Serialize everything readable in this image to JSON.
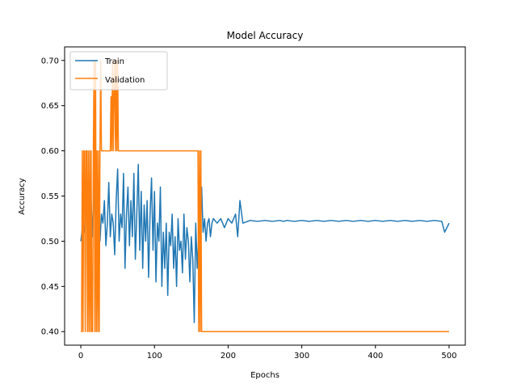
{
  "chart_data": {
    "type": "line",
    "title": "Model Accuracy",
    "xlabel": "Epochs",
    "ylabel": "Accuracy",
    "xlim": [
      -22,
      522
    ],
    "ylim": [
      0.385,
      0.715
    ],
    "xticks": [
      0,
      100,
      200,
      300,
      400,
      500
    ],
    "yticks": [
      0.4,
      0.45,
      0.5,
      0.55,
      0.6,
      0.65,
      0.7
    ],
    "ytick_labels": [
      "0.40",
      "0.45",
      "0.50",
      "0.55",
      "0.60",
      "0.65",
      "0.70"
    ],
    "grid": false,
    "legend_position": "top-left",
    "series": [
      {
        "name": "Train",
        "color": "#1f77b4",
        "x": [
          0,
          3,
          5,
          7,
          9,
          12,
          14,
          16,
          18,
          20,
          22,
          24,
          26,
          28,
          30,
          32,
          34,
          36,
          38,
          40,
          42,
          44,
          46,
          48,
          50,
          52,
          54,
          56,
          58,
          60,
          62,
          64,
          66,
          68,
          70,
          72,
          74,
          76,
          78,
          80,
          82,
          84,
          86,
          88,
          90,
          92,
          94,
          96,
          98,
          100,
          102,
          104,
          106,
          108,
          110,
          112,
          114,
          116,
          118,
          120,
          122,
          124,
          126,
          128,
          130,
          132,
          134,
          136,
          138,
          140,
          142,
          144,
          146,
          148,
          150,
          152,
          154,
          156,
          158,
          160,
          162,
          164,
          166,
          168,
          170,
          172,
          174,
          176,
          178,
          180,
          185,
          190,
          195,
          200,
          205,
          210,
          213,
          216,
          220,
          230,
          240,
          250,
          260,
          270,
          275,
          280,
          290,
          300,
          310,
          320,
          330,
          340,
          350,
          360,
          370,
          380,
          390,
          400,
          410,
          420,
          430,
          440,
          450,
          460,
          470,
          480,
          490,
          494,
          500
        ],
        "y": [
          0.5,
          0.52,
          0.51,
          0.555,
          0.5,
          0.52,
          0.545,
          0.505,
          0.56,
          0.5,
          0.525,
          0.54,
          0.5,
          0.53,
          0.52,
          0.545,
          0.495,
          0.52,
          0.565,
          0.505,
          0.53,
          0.52,
          0.485,
          0.545,
          0.58,
          0.5,
          0.53,
          0.515,
          0.575,
          0.47,
          0.53,
          0.56,
          0.495,
          0.545,
          0.505,
          0.575,
          0.48,
          0.53,
          0.585,
          0.49,
          0.555,
          0.47,
          0.54,
          0.5,
          0.545,
          0.46,
          0.53,
          0.57,
          0.49,
          0.555,
          0.455,
          0.52,
          0.5,
          0.56,
          0.45,
          0.51,
          0.47,
          0.52,
          0.44,
          0.51,
          0.495,
          0.53,
          0.47,
          0.505,
          0.45,
          0.525,
          0.49,
          0.5,
          0.465,
          0.53,
          0.48,
          0.515,
          0.5,
          0.455,
          0.505,
          0.48,
          0.41,
          0.52,
          0.47,
          0.505,
          0.49,
          0.56,
          0.51,
          0.525,
          0.5,
          0.52,
          0.525,
          0.505,
          0.52,
          0.525,
          0.52,
          0.525,
          0.515,
          0.525,
          0.52,
          0.53,
          0.505,
          0.545,
          0.52,
          0.523,
          0.522,
          0.523,
          0.522,
          0.523,
          0.522,
          0.523,
          0.522,
          0.523,
          0.522,
          0.523,
          0.522,
          0.523,
          0.522,
          0.523,
          0.522,
          0.523,
          0.522,
          0.523,
          0.522,
          0.523,
          0.522,
          0.523,
          0.522,
          0.523,
          0.522,
          0.523,
          0.522,
          0.51,
          0.52
        ]
      },
      {
        "name": "Validation",
        "color": "#ff7f0e",
        "x": [
          0,
          1,
          2,
          3,
          4,
          5,
          6,
          7,
          8,
          9,
          10,
          11,
          12,
          13,
          14,
          15,
          16,
          17,
          18,
          19,
          20,
          21,
          22,
          23,
          24,
          25,
          26,
          27,
          28,
          29,
          30,
          31,
          32,
          33,
          34,
          35,
          36,
          37,
          38,
          39,
          40,
          41,
          42,
          43,
          44,
          45,
          46,
          47,
          48,
          49,
          50,
          51,
          52,
          53,
          54,
          55,
          60,
          70,
          80,
          100,
          120,
          140,
          159,
          160,
          161,
          162,
          163,
          164,
          165,
          170,
          200,
          300,
          400,
          500
        ],
        "y": [
          0.4,
          0.4,
          0.6,
          0.4,
          0.6,
          0.6,
          0.4,
          0.6,
          0.6,
          0.4,
          0.6,
          0.4,
          0.6,
          0.4,
          0.6,
          0.4,
          0.4,
          0.6,
          0.7,
          0.4,
          0.7,
          0.4,
          0.6,
          0.4,
          0.6,
          0.4,
          0.6,
          0.7,
          0.6,
          0.6,
          0.6,
          0.6,
          0.6,
          0.6,
          0.6,
          0.6,
          0.6,
          0.6,
          0.6,
          0.6,
          0.6,
          0.66,
          0.6,
          0.7,
          0.6,
          0.66,
          0.7,
          0.6,
          0.7,
          0.6,
          0.7,
          0.6,
          0.6,
          0.6,
          0.6,
          0.6,
          0.6,
          0.6,
          0.6,
          0.6,
          0.6,
          0.6,
          0.6,
          0.4,
          0.6,
          0.4,
          0.6,
          0.4,
          0.4,
          0.4,
          0.4,
          0.4,
          0.4,
          0.4
        ]
      }
    ]
  }
}
